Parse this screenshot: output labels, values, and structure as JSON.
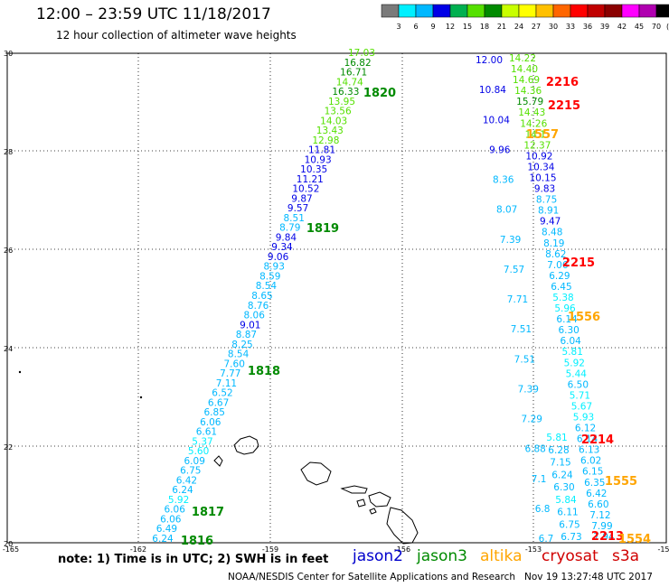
{
  "header": {
    "title": "12:00 – 23:59 UTC 11/18/2017",
    "subtitle": "12 hour collection of altimeter wave heights"
  },
  "colorbar": {
    "colors": [
      "#7a7a7a",
      "#00f0ff",
      "#00b8ff",
      "#0000e6",
      "#00b050",
      "#55e000",
      "#008a00",
      "#c8ff00",
      "#ffff00",
      "#ffc000",
      "#ff6600",
      "#ff0000",
      "#c00000",
      "#8a0000",
      "#ff00ff",
      "#b000b0",
      "#000000"
    ],
    "labels": [
      "3",
      "6",
      "9",
      "12",
      "15",
      "18",
      "21",
      "24",
      "27",
      "30",
      "33",
      "36",
      "39",
      "42",
      "45",
      "70"
    ],
    "unit": "(ft)"
  },
  "map": {
    "lat_ticks": [
      "30",
      "28",
      "26",
      "24",
      "22",
      "20"
    ],
    "lon_ticks": [
      "-165",
      "-162",
      "-159",
      "-156",
      "-153",
      "-15"
    ],
    "tracks": [
      {
        "name": "track-1816-1820",
        "color_key": "mixed",
        "points": [
          {
            "t": "17.03",
            "c": "#55e000"
          },
          {
            "t": "16.82",
            "c": "#008a00"
          },
          {
            "t": "16.71",
            "c": "#008a00"
          },
          {
            "t": "14.74",
            "c": "#55e000"
          },
          {
            "t": "16.33",
            "c": "#008a00"
          },
          {
            "t": "13.95",
            "c": "#55e000"
          },
          {
            "t": "13.56",
            "c": "#55e000"
          },
          {
            "t": "14.03",
            "c": "#55e000"
          },
          {
            "t": "13.43",
            "c": "#55e000"
          },
          {
            "t": "12.98",
            "c": "#55e000"
          },
          {
            "t": "11.81",
            "c": "#0000e6"
          },
          {
            "t": "10.93",
            "c": "#0000e6"
          },
          {
            "t": "10.35",
            "c": "#0000e6"
          },
          {
            "t": "11.21",
            "c": "#0000e6"
          },
          {
            "t": "10.52",
            "c": "#0000e6"
          },
          {
            "t": "9.87",
            "c": "#0000e6"
          },
          {
            "t": "9.57",
            "c": "#0000e6"
          },
          {
            "t": "8.51",
            "c": "#00b8ff"
          },
          {
            "t": "8.79",
            "c": "#00b8ff"
          },
          {
            "t": "9.84",
            "c": "#0000e6"
          },
          {
            "t": "9.34",
            "c": "#0000e6"
          },
          {
            "t": "9.06",
            "c": "#0000e6"
          },
          {
            "t": "8.93",
            "c": "#00b8ff"
          },
          {
            "t": "8.59",
            "c": "#00b8ff"
          },
          {
            "t": "8.54",
            "c": "#00b8ff"
          },
          {
            "t": "8.65",
            "c": "#00b8ff"
          },
          {
            "t": "8.76",
            "c": "#00b8ff"
          },
          {
            "t": "8.06",
            "c": "#00b8ff"
          },
          {
            "t": "9.01",
            "c": "#0000e6"
          },
          {
            "t": "8.87",
            "c": "#00b8ff"
          },
          {
            "t": "8.25",
            "c": "#00b8ff"
          },
          {
            "t": "8.54",
            "c": "#00b8ff"
          },
          {
            "t": "7.60",
            "c": "#00b8ff"
          },
          {
            "t": "7.77",
            "c": "#00b8ff"
          },
          {
            "t": "7.11",
            "c": "#00b8ff"
          },
          {
            "t": "6.52",
            "c": "#00b8ff"
          },
          {
            "t": "6.67",
            "c": "#00b8ff"
          },
          {
            "t": "6.85",
            "c": "#00b8ff"
          },
          {
            "t": "6.06",
            "c": "#00b8ff"
          },
          {
            "t": "6.61",
            "c": "#00b8ff"
          },
          {
            "t": "5.37",
            "c": "#00f0ff"
          },
          {
            "t": "5.60",
            "c": "#00f0ff"
          },
          {
            "t": "6.09",
            "c": "#00b8ff"
          },
          {
            "t": "6.75",
            "c": "#00b8ff"
          },
          {
            "t": "6.42",
            "c": "#00b8ff"
          },
          {
            "t": "6.24",
            "c": "#00b8ff"
          },
          {
            "t": "5.92",
            "c": "#00f0ff"
          },
          {
            "t": "6.06",
            "c": "#00b8ff"
          },
          {
            "t": "6.06",
            "c": "#00b8ff"
          },
          {
            "t": "6.49",
            "c": "#00b8ff"
          },
          {
            "t": "6.24",
            "c": "#00b8ff"
          }
        ]
      },
      {
        "name": "track-jason2-east",
        "points": [
          {
            "t": "12.00",
            "c": "#0000e6"
          },
          {
            "t": "10.84",
            "c": "#0000e6"
          },
          {
            "t": "10.04",
            "c": "#0000e6"
          },
          {
            "t": "9.96",
            "c": "#0000e6"
          },
          {
            "t": "8.36",
            "c": "#00b8ff"
          },
          {
            "t": "8.07",
            "c": "#00b8ff"
          },
          {
            "t": "7.39",
            "c": "#00b8ff"
          },
          {
            "t": "7.57",
            "c": "#00b8ff"
          },
          {
            "t": "7.71",
            "c": "#00b8ff"
          },
          {
            "t": "7.51",
            "c": "#00b8ff"
          },
          {
            "t": "7.51",
            "c": "#00b8ff"
          },
          {
            "t": "7.39",
            "c": "#00b8ff"
          },
          {
            "t": "7.29",
            "c": "#00b8ff"
          },
          {
            "t": "6.88",
            "c": "#00b8ff"
          },
          {
            "t": "7.1",
            "c": "#00b8ff"
          },
          {
            "t": "6.8",
            "c": "#00b8ff"
          },
          {
            "t": "6.7",
            "c": "#00b8ff"
          }
        ]
      },
      {
        "name": "track-jason3-east",
        "points": [
          {
            "t": "14.22",
            "c": "#55e000"
          },
          {
            "t": "14.40",
            "c": "#55e000"
          },
          {
            "t": "14.69",
            "c": "#55e000"
          },
          {
            "t": "14.36",
            "c": "#55e000"
          },
          {
            "t": "15.79",
            "c": "#008a00"
          },
          {
            "t": "14.43",
            "c": "#55e000"
          },
          {
            "t": "14.26",
            "c": "#55e000"
          },
          {
            "t": "14.1",
            "c": "#55e000"
          },
          {
            "t": "12.37",
            "c": "#55e000"
          },
          {
            "t": "10.92",
            "c": "#0000e6"
          },
          {
            "t": "10.34",
            "c": "#0000e6"
          },
          {
            "t": "10.15",
            "c": "#0000e6"
          },
          {
            "t": "9.83",
            "c": "#0000e6"
          },
          {
            "t": "8.75",
            "c": "#00b8ff"
          },
          {
            "t": "8.91",
            "c": "#00b8ff"
          },
          {
            "t": "9.47",
            "c": "#0000e6"
          },
          {
            "t": "8.48",
            "c": "#00b8ff"
          },
          {
            "t": "8.19",
            "c": "#00b8ff"
          },
          {
            "t": "8.62",
            "c": "#00b8ff"
          },
          {
            "t": "7.06",
            "c": "#00b8ff"
          },
          {
            "t": "6.29",
            "c": "#00b8ff"
          },
          {
            "t": "6.45",
            "c": "#00b8ff"
          },
          {
            "t": "5.38",
            "c": "#00f0ff"
          },
          {
            "t": "5.96",
            "c": "#00f0ff"
          },
          {
            "t": "6.14",
            "c": "#00b8ff"
          },
          {
            "t": "6.30",
            "c": "#00b8ff"
          },
          {
            "t": "6.04",
            "c": "#00b8ff"
          },
          {
            "t": "5.81",
            "c": "#00f0ff"
          },
          {
            "t": "5.92",
            "c": "#00f0ff"
          },
          {
            "t": "5.44",
            "c": "#00f0ff"
          },
          {
            "t": "6.50",
            "c": "#00b8ff"
          },
          {
            "t": "5.71",
            "c": "#00f0ff"
          },
          {
            "t": "5.67",
            "c": "#00f0ff"
          },
          {
            "t": "5.93",
            "c": "#00f0ff"
          },
          {
            "t": "6.12",
            "c": "#00b8ff"
          },
          {
            "t": "6.14",
            "c": "#00b8ff"
          },
          {
            "t": "6.13",
            "c": "#00b8ff"
          },
          {
            "t": "6.02",
            "c": "#00b8ff"
          },
          {
            "t": "6.15",
            "c": "#00b8ff"
          },
          {
            "t": "6.35",
            "c": "#00b8ff"
          },
          {
            "t": "6.42",
            "c": "#00b8ff"
          },
          {
            "t": "6.60",
            "c": "#00b8ff"
          },
          {
            "t": "7.12",
            "c": "#00b8ff"
          },
          {
            "t": "7.99",
            "c": "#00b8ff"
          },
          {
            "t": "7.94",
            "c": "#00b8ff"
          }
        ]
      },
      {
        "name": "track-inner-east",
        "points": [
          {
            "t": "5.81",
            "c": "#00f0ff"
          },
          {
            "t": "6.28",
            "c": "#00b8ff"
          },
          {
            "t": "7.15",
            "c": "#00b8ff"
          },
          {
            "t": "6.24",
            "c": "#00b8ff"
          },
          {
            "t": "6.30",
            "c": "#00b8ff"
          },
          {
            "t": "5.84",
            "c": "#00f0ff"
          },
          {
            "t": "6.11",
            "c": "#00b8ff"
          },
          {
            "t": "6.75",
            "c": "#00b8ff"
          },
          {
            "t": "6.73",
            "c": "#00b8ff"
          }
        ]
      }
    ],
    "time_labels": [
      {
        "t": "1820",
        "c": "#008a00"
      },
      {
        "t": "1819",
        "c": "#008a00"
      },
      {
        "t": "1818",
        "c": "#008a00"
      },
      {
        "t": "1817",
        "c": "#008a00"
      },
      {
        "t": "1816",
        "c": "#008a00"
      },
      {
        "t": "2216",
        "c": "#ff0000"
      },
      {
        "t": "2215",
        "c": "#ff0000"
      },
      {
        "t": "1557",
        "c": "#ffa500"
      },
      {
        "t": "2215",
        "c": "#ff0000"
      },
      {
        "t": "1556",
        "c": "#ffa500"
      },
      {
        "t": "2214",
        "c": "#ff0000"
      },
      {
        "t": "1555",
        "c": "#ffa500"
      },
      {
        "t": "2213",
        "c": "#ff0000"
      },
      {
        "t": "1554",
        "c": "#ffa500"
      }
    ]
  },
  "footer": {
    "note": "note: 1) Time is in UTC; 2) SWH is in feet",
    "satellites": [
      {
        "name": "jason2",
        "color": "#0000cc"
      },
      {
        "name": "jason3",
        "color": "#008a00"
      },
      {
        "name": "altika",
        "color": "#ffa500"
      },
      {
        "name": "cryosat",
        "color": "#d00000"
      },
      {
        "name": "s3a",
        "color": "#d00000"
      }
    ],
    "credit": "NOAA/NESDIS Center for Satellite Applications and Research",
    "timestamp": "Nov 19 13:27:48 UTC 2017"
  }
}
